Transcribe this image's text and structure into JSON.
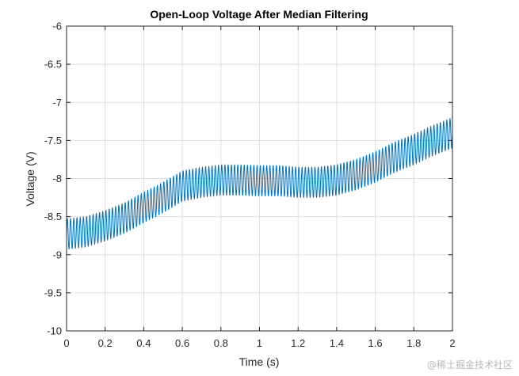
{
  "chart_data": {
    "type": "line",
    "title": "Open-Loop Voltage After Median Filtering",
    "xlabel": "Time (s)",
    "ylabel": "Voltage (V)",
    "xlim": [
      0,
      2
    ],
    "ylim": [
      -10,
      -6
    ],
    "xticks": [
      0,
      0.2,
      0.4,
      0.6,
      0.8,
      1,
      1.2,
      1.4,
      1.6,
      1.8,
      2
    ],
    "xtick_labels": [
      "0",
      "0.2",
      "0.4",
      "0.6",
      "0.8",
      "1",
      "1.2",
      "1.4",
      "1.6",
      "1.8",
      "2"
    ],
    "yticks": [
      -10,
      -9.5,
      -9,
      -8.5,
      -8,
      -7.5,
      -7,
      -6.5,
      -6
    ],
    "ytick_labels": [
      "-10",
      "-9.5",
      "-9",
      "-8.5",
      "-8",
      "-7.5",
      "-7",
      "-6.5",
      "-6"
    ],
    "grid": true,
    "series": [
      {
        "name": "Voltage",
        "color": "#0072BD",
        "oscillation_frequency_hz": 60,
        "oscillation_amplitude": 0.2,
        "envelope_center": {
          "t": [
            0,
            0.1,
            0.2,
            0.3,
            0.4,
            0.5,
            0.6,
            0.7,
            0.8,
            0.9,
            1.0,
            1.1,
            1.2,
            1.3,
            1.4,
            1.5,
            1.6,
            1.7,
            1.8,
            1.9,
            2.0
          ],
          "v": [
            -8.73,
            -8.7,
            -8.62,
            -8.52,
            -8.38,
            -8.25,
            -8.1,
            -8.05,
            -8.02,
            -8.02,
            -8.03,
            -8.03,
            -8.05,
            -8.05,
            -8.02,
            -7.95,
            -7.85,
            -7.72,
            -7.62,
            -7.5,
            -7.4
          ]
        }
      }
    ]
  },
  "watermark": "@稀土掘金技术社区"
}
